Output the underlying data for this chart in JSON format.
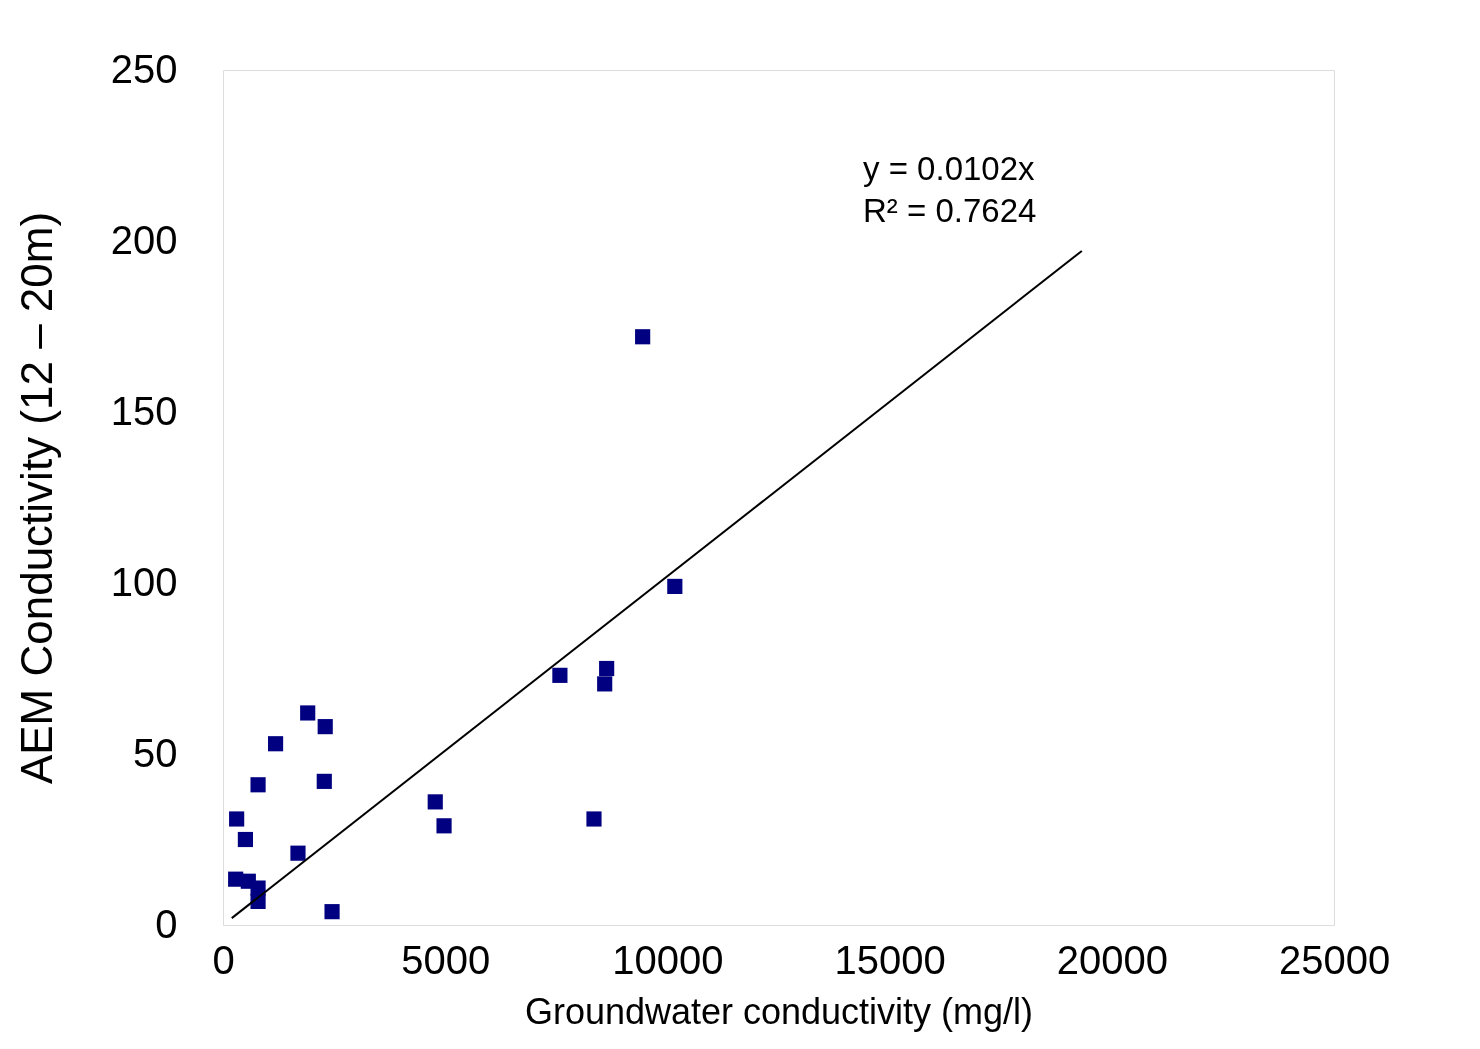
{
  "chart_data": {
    "type": "scatter",
    "xlabel": "Groundwater conductivity (mg/l)",
    "ylabel": "AEM Conductivity  (12 – 20m)",
    "xlim": [
      0,
      25000
    ],
    "ylim": [
      0,
      250
    ],
    "xticks": [
      0,
      5000,
      10000,
      15000,
      20000,
      25000
    ],
    "yticks": [
      0,
      50,
      100,
      150,
      200,
      250
    ],
    "grid": false,
    "series": [
      {
        "marker": "square",
        "color": "#000080",
        "x": [
          307,
          504,
          285,
          570,
          789,
          789,
          789,
          1183,
          1906,
          2300,
          2279,
          1687,
          2454,
          4776,
          4974,
          7581,
          8633,
          8589,
          8348,
          9443,
          10167
        ],
        "values": [
          31,
          25,
          13.4,
          12.8,
          10.8,
          6.9,
          41,
          53,
          62,
          58,
          42,
          21,
          3.9,
          36,
          29,
          73,
          75,
          70.5,
          31,
          172,
          99
        ]
      },
      {
        "type": "line",
        "line_style": "solid",
        "color": "#000000",
        "x": [
          197,
          19325
        ],
        "values": [
          2.0,
          197.1
        ]
      }
    ],
    "annotations": [
      "y = 0.0102x",
      "R² = 0.7624"
    ]
  }
}
